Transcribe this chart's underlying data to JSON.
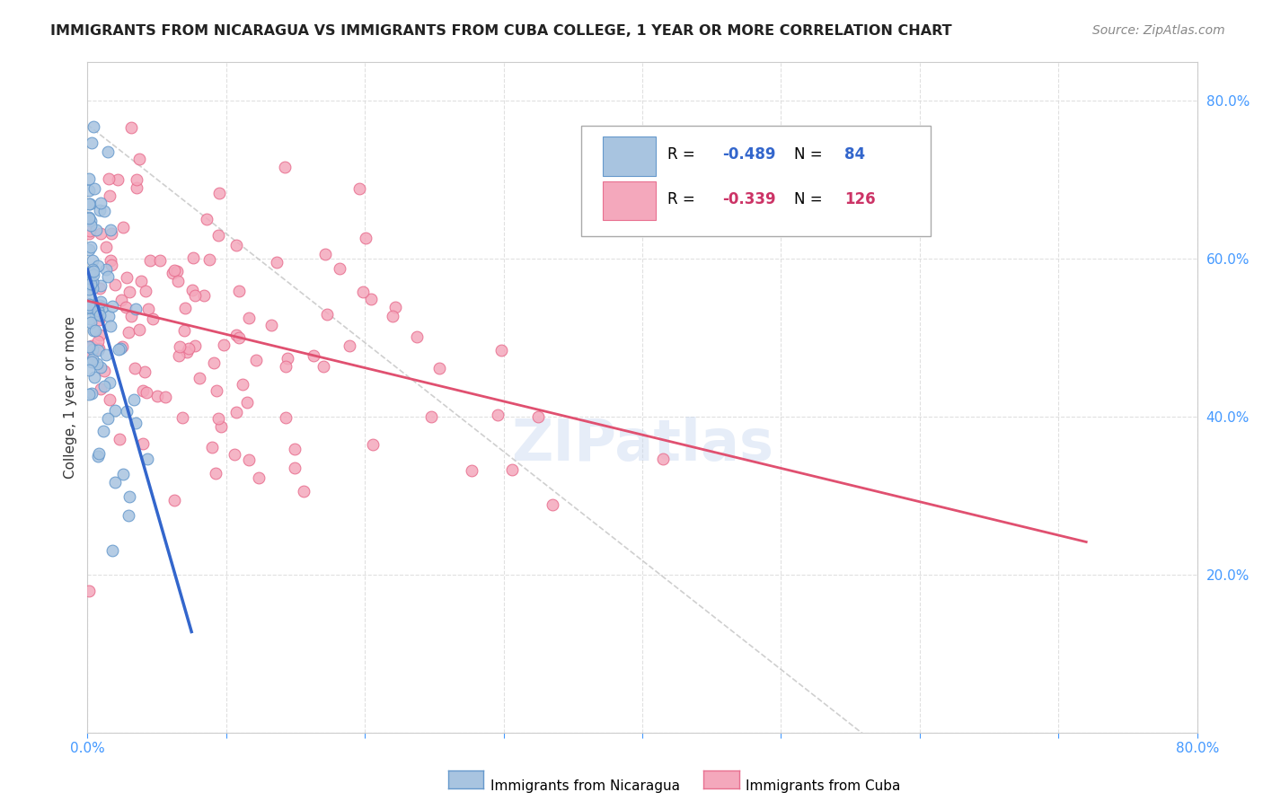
{
  "title": "IMMIGRANTS FROM NICARAGUA VS IMMIGRANTS FROM CUBA COLLEGE, 1 YEAR OR MORE CORRELATION CHART",
  "source": "Source: ZipAtlas.com",
  "ylabel": "College, 1 year or more",
  "xmin": 0.0,
  "xmax": 0.8,
  "ymin": 0.0,
  "ymax": 0.85,
  "R_nicaragua": -0.489,
  "N_nicaragua": 84,
  "R_cuba": -0.339,
  "N_cuba": 126,
  "nicaragua_color": "#a8c4e0",
  "cuba_color": "#f4a8bc",
  "nicaragua_edge": "#6699cc",
  "cuba_edge": "#e87090",
  "regression_nicaragua_color": "#3366cc",
  "regression_cuba_color": "#e05070",
  "watermark": "ZIPatlas",
  "label_color": "#4499ff",
  "grid_color": "#dddddd",
  "title_color": "#222222",
  "source_color": "#888888"
}
